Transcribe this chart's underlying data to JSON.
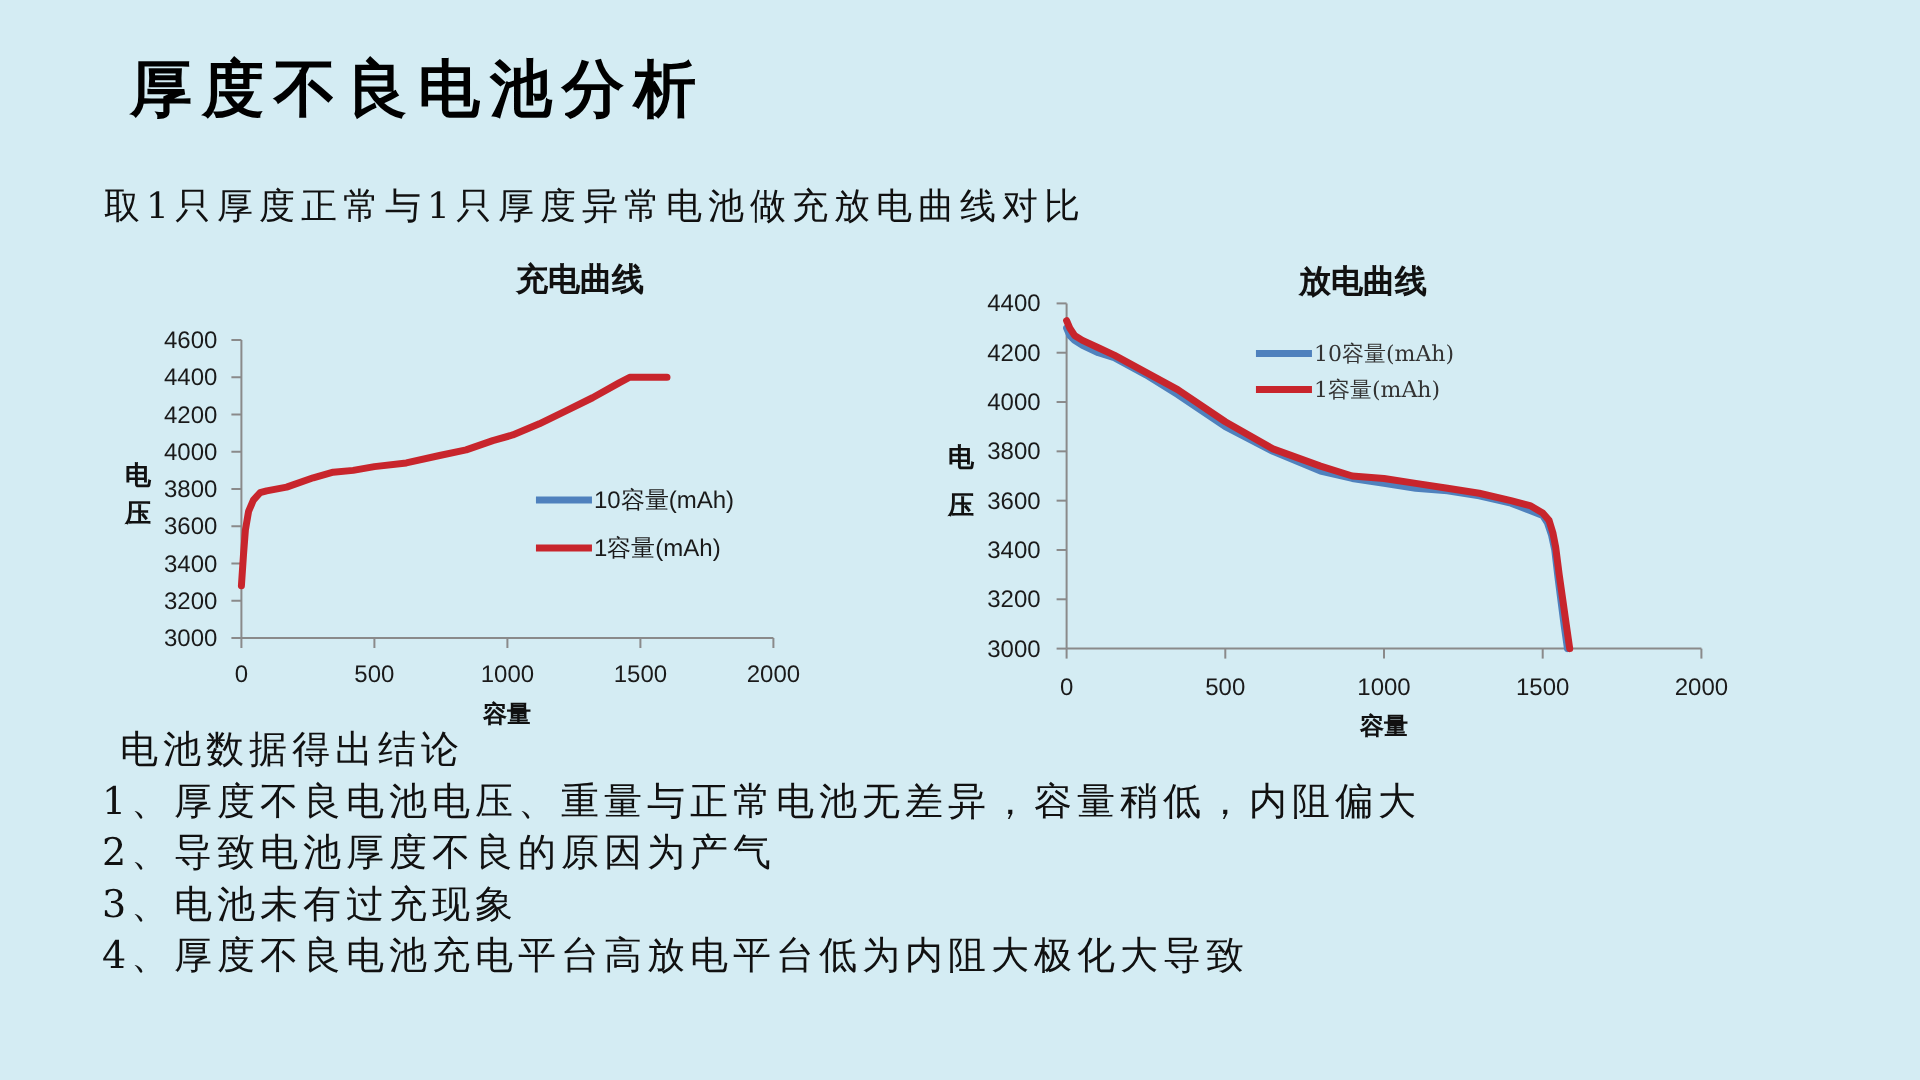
{
  "chart_data": [
    {
      "type": "other",
      "title": "厚度不良电池分析",
      "subtitle": "取1只厚度正常与1只厚度异常电池做充放电曲线对比"
    },
    {
      "type": "line",
      "title": "充电曲线",
      "xlabel": "容量",
      "ylabel": "电压",
      "xlim": [
        0,
        2000
      ],
      "xticks": [
        0,
        500,
        1000,
        1500,
        2000
      ],
      "ylim": [
        3000,
        4600
      ],
      "yticks": [
        3000,
        3200,
        3400,
        3600,
        3800,
        4000,
        4200,
        4400,
        4600
      ],
      "legend": "right",
      "x": [
        0,
        8,
        15,
        27,
        45,
        70,
        95,
        170,
        270,
        345,
        420,
        500,
        620,
        745,
        845,
        945,
        1020,
        1120,
        1220,
        1320,
        1420,
        1460,
        1530,
        1600
      ],
      "series": [
        {
          "name": "10容量(mAh)",
          "color": "#4f81bd",
          "values": [
            null,
            null,
            null,
            null,
            null,
            null,
            null,
            null,
            null,
            null,
            null,
            null,
            null,
            null,
            null,
            null,
            null,
            null,
            null,
            null,
            null,
            null,
            null,
            null
          ]
        },
        {
          "name": "1容量(mAh)",
          "color": "#c8252c",
          "values": [
            3280,
            3450,
            3580,
            3680,
            3740,
            3780,
            3790,
            3810,
            3860,
            3890,
            3900,
            3920,
            3940,
            3980,
            4010,
            4060,
            4090,
            4150,
            4220,
            4290,
            4370,
            4400,
            4400,
            4400
          ]
        }
      ]
    },
    {
      "type": "line",
      "title": "放电曲线",
      "xlabel": "容量",
      "ylabel": "电压",
      "xlim": [
        0,
        2000
      ],
      "xticks": [
        0,
        500,
        1000,
        1500,
        2000
      ],
      "ylim": [
        3000,
        4400
      ],
      "yticks": [
        3000,
        3200,
        3400,
        3600,
        3800,
        4000,
        4200,
        4400
      ],
      "legend": "top",
      "series": [
        {
          "name": "10容量(mAh)",
          "color": "#4f81bd",
          "x": [
            0,
            10,
            25,
            50,
            100,
            150,
            250,
            350,
            500,
            650,
            800,
            900,
            1000,
            1100,
            1200,
            1300,
            1400,
            1460,
            1500,
            1515,
            1528,
            1538,
            1548,
            1558,
            1568,
            1578
          ],
          "values": [
            4300,
            4270,
            4250,
            4230,
            4200,
            4180,
            4110,
            4030,
            3900,
            3800,
            3720,
            3690,
            3670,
            3650,
            3640,
            3620,
            3590,
            3560,
            3540,
            3510,
            3460,
            3400,
            3290,
            3190,
            3090,
            3000
          ]
        },
        {
          "name": "1容量(mAh)",
          "color": "#c8252c",
          "x": [
            0,
            10,
            25,
            50,
            100,
            150,
            250,
            350,
            500,
            650,
            800,
            900,
            1000,
            1100,
            1200,
            1300,
            1400,
            1460,
            1500,
            1520,
            1532,
            1541,
            1552,
            1563,
            1574,
            1585
          ],
          "values": [
            4330,
            4300,
            4270,
            4250,
            4220,
            4190,
            4120,
            4050,
            3920,
            3810,
            3740,
            3700,
            3690,
            3670,
            3650,
            3630,
            3600,
            3580,
            3550,
            3520,
            3470,
            3410,
            3300,
            3200,
            3100,
            3000
          ]
        }
      ]
    },
    {
      "type": "other",
      "annotations": [
        "电池数据得出结论",
        "1、厚度不良电池电压、重量与正常电池无差异，容量稍低，内阻偏大",
        "2、导致电池厚度不良的原因为产气",
        "3、电池未有过充现象",
        "4、厚度不良电池充电平台高放电平台低为内阻大极化大导致"
      ]
    }
  ]
}
